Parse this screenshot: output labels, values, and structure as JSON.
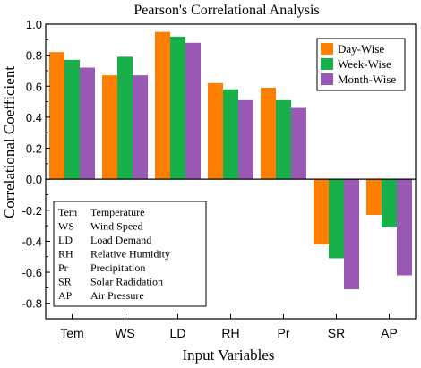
{
  "chart_data": {
    "type": "bar",
    "title": "Pearson's Correlational Analysis",
    "xlabel": "Input Variables",
    "ylabel": "Correlational Coefficient",
    "categories": [
      "Tem",
      "WS",
      "LD",
      "RH",
      "Pr",
      "SR",
      "AP"
    ],
    "ylim": [
      -0.9,
      1.0
    ],
    "yticks": [
      -0.8,
      -0.6,
      -0.4,
      -0.2,
      0.0,
      0.2,
      0.4,
      0.6,
      0.8,
      1.0
    ],
    "ytick_labels": [
      "-0.8",
      "-0.6",
      "-0.4",
      "-0.2",
      "0.0",
      "0.2",
      "0.4",
      "0.6",
      "0.8",
      "1.0"
    ],
    "grid": false,
    "legend_position": "top-right",
    "series": [
      {
        "name": "Day-Wise",
        "color": "#ff8000",
        "values": [
          0.82,
          0.67,
          0.95,
          0.62,
          0.59,
          -0.42,
          -0.23
        ]
      },
      {
        "name": "Week-Wise",
        "color": "#17b04a",
        "values": [
          0.77,
          0.79,
          0.92,
          0.58,
          0.51,
          -0.51,
          -0.31
        ]
      },
      {
        "name": "Month-Wise",
        "color": "#9b59b6",
        "values": [
          0.72,
          0.67,
          0.88,
          0.51,
          0.46,
          -0.71,
          -0.62
        ]
      }
    ],
    "abbreviations": [
      {
        "abbr": "Tem",
        "full": "Temperature"
      },
      {
        "abbr": "WS",
        "full": "Wind Speed"
      },
      {
        "abbr": "LD",
        "full": "Load Demand"
      },
      {
        "abbr": "RH",
        "full": "Relative Humidity"
      },
      {
        "abbr": "Pr",
        "full": "Precipitation"
      },
      {
        "abbr": "SR",
        "full": "Solar Radidation"
      },
      {
        "abbr": "AP",
        "full": "Air Pressure"
      }
    ]
  }
}
